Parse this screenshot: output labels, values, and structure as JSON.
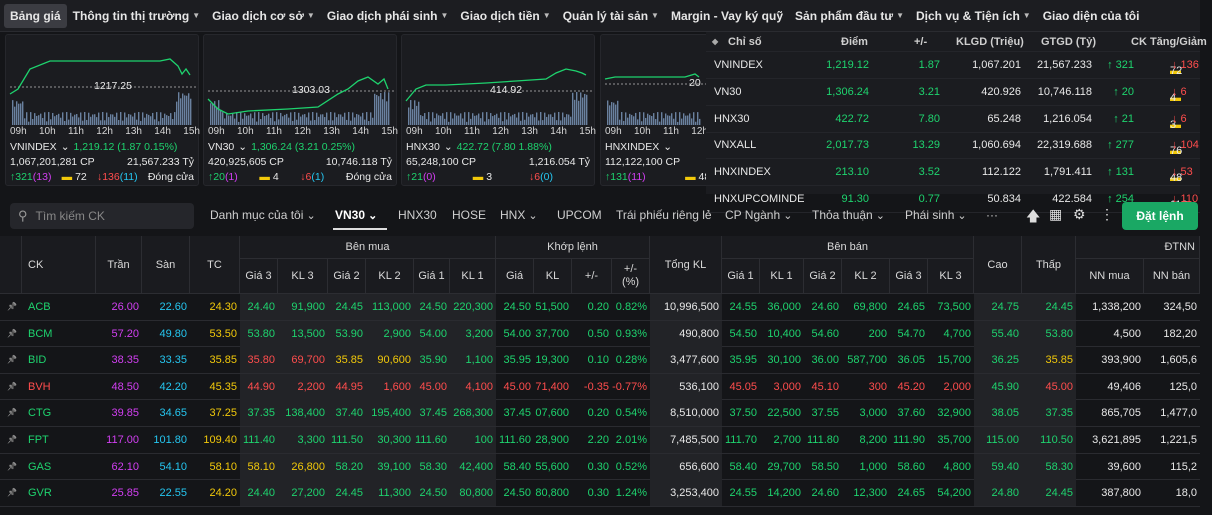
{
  "nav": {
    "items": [
      {
        "label": "Bảng giá",
        "dropdown": false
      },
      {
        "label": "Thông tin thị trường",
        "dropdown": true
      },
      {
        "label": "Giao dịch cơ sở",
        "dropdown": true
      },
      {
        "label": "Giao dịch phái sinh",
        "dropdown": true
      },
      {
        "label": "Giao dịch tiền",
        "dropdown": true
      },
      {
        "label": "Quản lý tài sản",
        "dropdown": true
      },
      {
        "label": "Margin - Vay ký quỹ",
        "dropdown": false
      },
      {
        "label": "Sản phẩm đầu tư",
        "dropdown": true
      },
      {
        "label": "Dịch vụ & Tiện ích",
        "dropdown": true
      },
      {
        "label": "Giao diện của tôi",
        "dropdown": false
      }
    ]
  },
  "mini_charts": [
    {
      "name": "VNINDEX",
      "ref": "1217.25",
      "value_change": "1,219.12 (1.87 0.15%)",
      "volume": "1,067,201,281 CP",
      "turnover": "21,567.233 Tỷ",
      "up": "↑321",
      "ceil": "(13)",
      "flat": "72",
      "down": "↓136",
      "floor": "(11)",
      "status": "Đóng cửa"
    },
    {
      "name": "VN30",
      "ref": "1303.03",
      "value_change": "1,306.24 (3.21 0.25%)",
      "volume": "420,925,605 CP",
      "turnover": "10,746.118 Tỷ",
      "up": "↑20",
      "ceil": "(1)",
      "flat": "4",
      "down": "↓6",
      "floor": "(1)",
      "status": "Đóng cửa"
    },
    {
      "name": "HNX30",
      "ref": "414.92",
      "value_change": "422.72 (7.80 1.88%)",
      "volume": "65,248,100 CP",
      "turnover": "1,216.054 Tỷ",
      "up": "↑21",
      "ceil": "(0)",
      "flat": "3",
      "down": "↓6",
      "floor": "(0)",
      "status": ""
    },
    {
      "name": "HNXINDEX",
      "ref": "20",
      "value_change": "",
      "volume": "112,122,100 CP",
      "turnover": "",
      "up": "↑131",
      "ceil": "(11)",
      "flat": "48",
      "down": "",
      "floor": "",
      "status": ""
    }
  ],
  "chart_times": [
    "09h",
    "10h",
    "11h",
    "12h",
    "13h",
    "14h",
    "15h"
  ],
  "index_table": {
    "headers": {
      "name": "Chỉ số",
      "point": "Điểm",
      "change": "+/-",
      "klgd": "KLGD (Triệu)",
      "gtgd": "GTGD (Tỷ)",
      "ck": "CK Tăng/Giảm"
    },
    "rows": [
      {
        "name": "VNINDEX",
        "point": "1,219.12",
        "change": "1.87",
        "klgd": "1,067.201",
        "gtgd": "21,567.233",
        "up": "↑ 321",
        "flat": "72",
        "down": "↓ 136"
      },
      {
        "name": "VN30",
        "point": "1,306.24",
        "change": "3.21",
        "klgd": "420.926",
        "gtgd": "10,746.118",
        "up": "↑ 20",
        "flat": "4",
        "down": "↓ 6"
      },
      {
        "name": "HNX30",
        "point": "422.72",
        "change": "7.80",
        "klgd": "65.248",
        "gtgd": "1,216.054",
        "up": "↑ 21",
        "flat": "3",
        "down": "↓ 6"
      },
      {
        "name": "VNXALL",
        "point": "2,017.73",
        "change": "13.29",
        "klgd": "1,060.694",
        "gtgd": "22,319.688",
        "up": "↑ 277",
        "flat": "76",
        "down": "↓ 104"
      },
      {
        "name": "HNXINDEX",
        "point": "213.10",
        "change": "3.52",
        "klgd": "112.122",
        "gtgd": "1,791.411",
        "up": "↑ 131",
        "flat": "48",
        "down": "↓ 53"
      },
      {
        "name": "HNXUPCOMINDE",
        "point": "91.30",
        "change": "0.77",
        "klgd": "50.834",
        "gtgd": "422.584",
        "up": "↑ 254",
        "flat": "113",
        "down": "↓ 110"
      }
    ]
  },
  "toolbar": {
    "search_placeholder": "Tìm kiếm CK",
    "tabs": [
      {
        "label": "Danh mục của tôi",
        "dropdown": true
      },
      {
        "label": "VN30",
        "dropdown": true
      },
      {
        "label": "HNX30",
        "dropdown": false
      },
      {
        "label": "HOSE",
        "dropdown": false
      },
      {
        "label": "HNX",
        "dropdown": true
      },
      {
        "label": "UPCOM",
        "dropdown": false
      },
      {
        "label": "Trái phiếu riêng lẻ",
        "dropdown": false
      },
      {
        "label": "CP Ngành",
        "dropdown": true
      },
      {
        "label": "Thỏa thuận",
        "dropdown": true
      },
      {
        "label": "Phái sinh",
        "dropdown": true
      },
      {
        "label": "···",
        "dropdown": false
      }
    ],
    "order_button": "Đặt lệnh"
  },
  "table_headers": {
    "ck": "CK",
    "tran": "Trần",
    "san": "Sàn",
    "tc": "TC",
    "ben_mua": "Bên mua",
    "khop_lenh": "Khớp lệnh",
    "tong_kl": "Tổng KL",
    "ben_ban": "Bên bán",
    "cao": "Cao",
    "thap": "Thấp",
    "dtnn": "ĐTNN",
    "gia3": "Giá 3",
    "kl3": "KL 3",
    "gia2": "Giá 2",
    "kl2": "KL 2",
    "gia1": "Giá 1",
    "kl1": "KL 1",
    "gia": "Giá",
    "kl": "KL",
    "pm": "+/-",
    "pct": "+/-\n(%)",
    "nn_mua": "NN mua",
    "nn_ban": "NN bán"
  },
  "colors": {
    "up": "#1ed36e",
    "down": "#ff4d4d",
    "ref": "#f2c90a",
    "ceil": "#d23ff2",
    "floor": "#25c6f0",
    "accent": "#1aa864"
  },
  "rows": [
    {
      "ck": "ACB",
      "tran": "26.00",
      "san": "22.60",
      "tc": "24.30",
      "b_p3": "24.40",
      "b_v3": "91,900",
      "b_p2": "24.45",
      "b_v2": "113,000",
      "b_p1": "24.50",
      "b_v1": "220,300",
      "m_p": "24.50",
      "m_v": "51,500",
      "m_c": "0.20",
      "m_pct": "0.82%",
      "total": "10,996,500",
      "s_p1": "24.55",
      "s_v1": "36,000",
      "s_p2": "24.60",
      "s_v2": "69,800",
      "s_p3": "24.65",
      "s_v3": "73,500",
      "high": "24.75",
      "low": "24.45",
      "nn_buy": "1,338,200",
      "nn_sell": "324,50",
      "cls": {
        "ck": "g",
        "b3": "g",
        "b2": "g",
        "b1": "g",
        "m": "g",
        "s1": "g",
        "s2": "g",
        "s3": "g",
        "high": "g",
        "low": "g"
      }
    },
    {
      "ck": "BCM",
      "tran": "57.20",
      "san": "49.80",
      "tc": "53.50",
      "b_p3": "53.80",
      "b_v3": "13,500",
      "b_p2": "53.90",
      "b_v2": "2,900",
      "b_p1": "54.00",
      "b_v1": "3,200",
      "m_p": "54.00",
      "m_v": "37,700",
      "m_c": "0.50",
      "m_pct": "0.93%",
      "total": "490,800",
      "s_p1": "54.50",
      "s_v1": "10,400",
      "s_p2": "54.60",
      "s_v2": "200",
      "s_p3": "54.70",
      "s_v3": "4,700",
      "high": "55.40",
      "low": "53.80",
      "nn_buy": "4,500",
      "nn_sell": "182,20",
      "cls": {
        "ck": "g",
        "b3": "g",
        "b2": "g",
        "b1": "g",
        "m": "g",
        "s1": "g",
        "s2": "g",
        "s3": "g",
        "high": "g",
        "low": "g"
      }
    },
    {
      "ck": "BID",
      "tran": "38.35",
      "san": "33.35",
      "tc": "35.85",
      "b_p3": "35.80",
      "b_v3": "69,700",
      "b_p2": "35.85",
      "b_v2": "90,600",
      "b_p1": "35.90",
      "b_v1": "1,100",
      "m_p": "35.95",
      "m_v": "19,300",
      "m_c": "0.10",
      "m_pct": "0.28%",
      "total": "3,477,600",
      "s_p1": "35.95",
      "s_v1": "30,100",
      "s_p2": "36.00",
      "s_v2": "587,700",
      "s_p3": "36.05",
      "s_v3": "15,700",
      "high": "36.25",
      "low": "35.85",
      "nn_buy": "393,900",
      "nn_sell": "1,605,6",
      "cls": {
        "ck": "g",
        "b3": "r",
        "b2": "y",
        "b1": "g",
        "m": "g",
        "s1": "g",
        "s2": "g",
        "s3": "g",
        "high": "g",
        "low": "y"
      }
    },
    {
      "ck": "BVH",
      "tran": "48.50",
      "san": "42.20",
      "tc": "45.35",
      "b_p3": "44.90",
      "b_v3": "2,200",
      "b_p2": "44.95",
      "b_v2": "1,600",
      "b_p1": "45.00",
      "b_v1": "4,100",
      "m_p": "45.00",
      "m_v": "71,400",
      "m_c": "-0.35",
      "m_pct": "-0.77%",
      "total": "536,100",
      "s_p1": "45.05",
      "s_v1": "3,000",
      "s_p2": "45.10",
      "s_v2": "300",
      "s_p3": "45.20",
      "s_v3": "2,000",
      "high": "45.90",
      "low": "45.00",
      "nn_buy": "49,406",
      "nn_sell": "125,0",
      "cls": {
        "ck": "r",
        "b3": "r",
        "b2": "r",
        "b1": "r",
        "m": "r",
        "s1": "r",
        "s2": "r",
        "s3": "r",
        "high": "g",
        "low": "r"
      }
    },
    {
      "ck": "CTG",
      "tran": "39.85",
      "san": "34.65",
      "tc": "37.25",
      "b_p3": "37.35",
      "b_v3": "138,400",
      "b_p2": "37.40",
      "b_v2": "195,400",
      "b_p1": "37.45",
      "b_v1": "268,300",
      "m_p": "37.45",
      "m_v": "07,600",
      "m_c": "0.20",
      "m_pct": "0.54%",
      "total": "8,510,000",
      "s_p1": "37.50",
      "s_v1": "22,500",
      "s_p2": "37.55",
      "s_v2": "3,000",
      "s_p3": "37.60",
      "s_v3": "32,900",
      "high": "38.05",
      "low": "37.35",
      "nn_buy": "865,705",
      "nn_sell": "1,477,0",
      "cls": {
        "ck": "g",
        "b3": "g",
        "b2": "g",
        "b1": "g",
        "m": "g",
        "s1": "g",
        "s2": "g",
        "s3": "g",
        "high": "g",
        "low": "g"
      }
    },
    {
      "ck": "FPT",
      "tran": "117.00",
      "san": "101.80",
      "tc": "109.40",
      "b_p3": "111.40",
      "b_v3": "3,300",
      "b_p2": "111.50",
      "b_v2": "30,300",
      "b_p1": "111.60",
      "b_v1": "100",
      "m_p": "111.60",
      "m_v": "28,900",
      "m_c": "2.20",
      "m_pct": "2.01%",
      "total": "7,485,500",
      "s_p1": "111.70",
      "s_v1": "2,700",
      "s_p2": "111.80",
      "s_v2": "8,200",
      "s_p3": "111.90",
      "s_v3": "35,700",
      "high": "115.00",
      "low": "110.50",
      "nn_buy": "3,621,895",
      "nn_sell": "1,221,5",
      "cls": {
        "ck": "g",
        "b3": "g",
        "b2": "g",
        "b1": "g",
        "m": "g",
        "s1": "g",
        "s2": "g",
        "s3": "g",
        "high": "g",
        "low": "g"
      }
    },
    {
      "ck": "GAS",
      "tran": "62.10",
      "san": "54.10",
      "tc": "58.10",
      "b_p3": "58.10",
      "b_v3": "26,800",
      "b_p2": "58.20",
      "b_v2": "39,100",
      "b_p1": "58.30",
      "b_v1": "42,400",
      "m_p": "58.40",
      "m_v": "55,600",
      "m_c": "0.30",
      "m_pct": "0.52%",
      "total": "656,600",
      "s_p1": "58.40",
      "s_v1": "29,700",
      "s_p2": "58.50",
      "s_v2": "1,000",
      "s_p3": "58.60",
      "s_v3": "4,800",
      "high": "59.40",
      "low": "58.30",
      "nn_buy": "39,600",
      "nn_sell": "115,2",
      "cls": {
        "ck": "g",
        "b3": "y",
        "b2": "g",
        "b1": "g",
        "m": "g",
        "s1": "g",
        "s2": "g",
        "s3": "g",
        "high": "g",
        "low": "g"
      }
    },
    {
      "ck": "GVR",
      "tran": "25.85",
      "san": "22.55",
      "tc": "24.20",
      "b_p3": "24.40",
      "b_v3": "27,200",
      "b_p2": "24.45",
      "b_v2": "11,300",
      "b_p1": "24.50",
      "b_v1": "80,800",
      "m_p": "24.50",
      "m_v": "80,800",
      "m_c": "0.30",
      "m_pct": "1.24%",
      "total": "3,253,400",
      "s_p1": "24.55",
      "s_v1": "14,200",
      "s_p2": "24.60",
      "s_v2": "12,300",
      "s_p3": "24.65",
      "s_v3": "54,200",
      "high": "24.80",
      "low": "24.45",
      "nn_buy": "387,800",
      "nn_sell": "18,0",
      "cls": {
        "ck": "g",
        "b3": "g",
        "b2": "g",
        "b1": "g",
        "m": "g",
        "s1": "g",
        "s2": "g",
        "s3": "g",
        "high": "g",
        "low": "g"
      }
    }
  ]
}
